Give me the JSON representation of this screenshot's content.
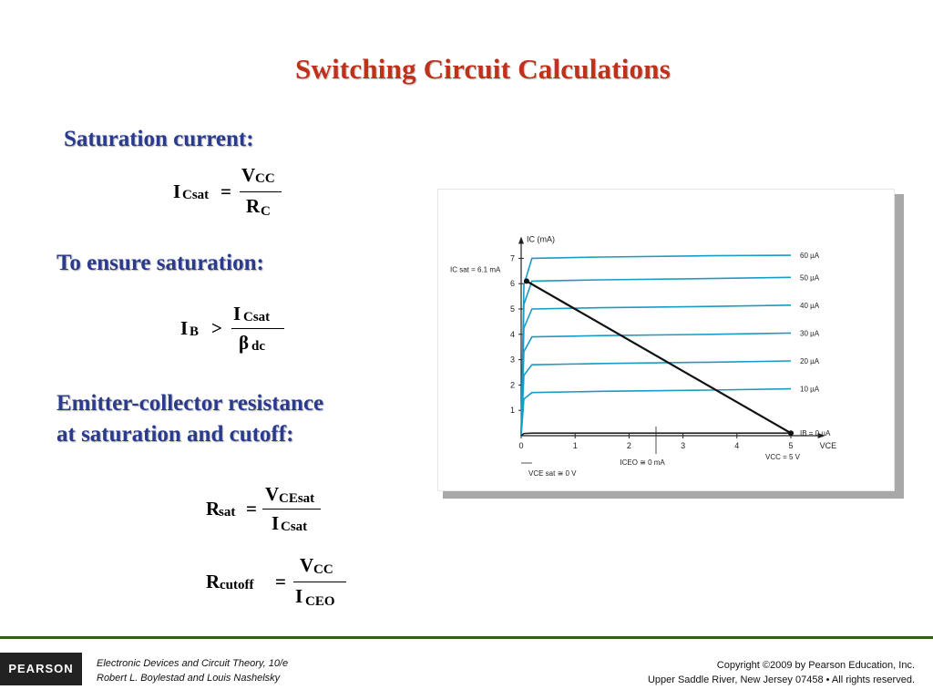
{
  "title": "Switching Circuit Calculations",
  "sections": {
    "saturation_current": "Saturation current:",
    "ensure_saturation": "To ensure saturation:",
    "resistance_line1": "Emitter-collector resistance",
    "resistance_line2": "at saturation and cutoff:"
  },
  "equations": {
    "icsat": {
      "lhs": "I",
      "lhs_sub": "Csat",
      "op": "=",
      "num": "V",
      "num_sub": "CC",
      "den": "R",
      "den_sub": "C"
    },
    "ib": {
      "lhs": "I",
      "lhs_sub": "B",
      "op": ">",
      "num": "I",
      "num_sub": "Csat",
      "den": "β",
      "den_sub": "dc"
    },
    "rsat": {
      "lhs": "R",
      "lhs_sub": "sat",
      "op": "=",
      "num": "V",
      "num_sub": "CEsat",
      "den": "I",
      "den_sub": "Csat"
    },
    "rcutoff": {
      "lhs": "R",
      "lhs_sub": "cutoff",
      "op": "=",
      "num": "V",
      "num_sub": "CC",
      "den": "I",
      "den_sub": "CEO"
    }
  },
  "chart_data": {
    "type": "line",
    "title": "",
    "xlabel": "VCE",
    "ylabel": "IC (mA)",
    "xlim": [
      0,
      5.5
    ],
    "ylim": [
      0,
      7.5
    ],
    "x_ticks": [
      "0",
      "1",
      "2",
      "3",
      "4",
      "5"
    ],
    "y_ticks": [
      "1",
      "2",
      "3",
      "4",
      "5",
      "6",
      "7"
    ],
    "series": [
      {
        "name": "60 µA",
        "values": [
          7.0,
          7.05,
          7.1,
          7.12
        ]
      },
      {
        "name": "50 µA",
        "values": [
          6.1,
          6.15,
          6.2,
          6.25
        ]
      },
      {
        "name": "40 µA",
        "values": [
          5.0,
          5.05,
          5.1,
          5.15
        ]
      },
      {
        "name": "30 µA",
        "values": [
          3.9,
          3.95,
          4.0,
          4.05
        ]
      },
      {
        "name": "20 µA",
        "values": [
          2.8,
          2.85,
          2.9,
          2.95
        ]
      },
      {
        "name": "10 µA",
        "values": [
          1.7,
          1.75,
          1.8,
          1.85
        ]
      },
      {
        "name": "IB = 0 µA",
        "values": [
          0.1,
          0.1,
          0.1,
          0.1
        ]
      }
    ],
    "series_x": [
      0.2,
      1.5,
      3.5,
      5.0
    ],
    "load_line": {
      "x": [
        0.1,
        5.0
      ],
      "y": [
        6.1,
        0.1
      ]
    },
    "annotations": {
      "icsat": "IC sat = 6.1 mA",
      "vcc": "VCC = 5 V",
      "iceo": "ICEO ≅ 0 mA",
      "vcesat": "VCE sat ≅ 0 V"
    }
  },
  "footer": {
    "logo": "PEARSON",
    "book_line1": "Electronic Devices and Circuit Theory, 10/e",
    "book_line2": "Robert L. Boylestad and Louis Nashelsky",
    "copyright_line1": "Copyright ©2009 by Pearson Education, Inc.",
    "copyright_line2": "Upper Saddle River, New Jersey 07458 • All rights reserved."
  },
  "colors": {
    "title": "#c0311c",
    "heading": "#2a3b8f",
    "curve": "#1a9bc4",
    "footer_rule": "#2e5c21"
  }
}
